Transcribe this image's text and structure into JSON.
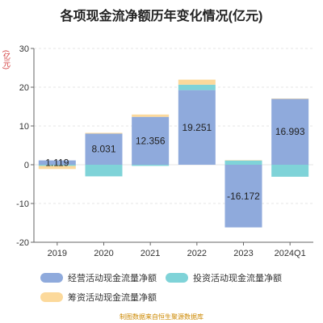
{
  "chart_data": {
    "type": "bar",
    "stacked": true,
    "title": "各项现金流净额历年变化情况(亿元)",
    "unit_label": "(亿元)",
    "categories": [
      "2019",
      "2020",
      "2021",
      "2022",
      "2023",
      "2024Q1"
    ],
    "ylim": [
      -20,
      30
    ],
    "yticks": [
      -20,
      -10,
      0,
      10,
      20,
      30
    ],
    "grid": true,
    "legend_position": "bottom",
    "series": [
      {
        "name": "经营活动现金流量净额",
        "color": "#8faadc",
        "values": [
          1.119,
          8.031,
          12.356,
          19.251,
          -16.172,
          16.993
        ],
        "labels": [
          "1.119",
          "8.031",
          "12.356",
          "19.251",
          "-16.172",
          "16.993"
        ]
      },
      {
        "name": "投资活动现金流量净额",
        "color": "#7fd3d8",
        "values": [
          -0.3,
          -3.0,
          -0.3,
          1.4,
          1.1,
          -3.1
        ]
      },
      {
        "name": "筹资活动现金流量净额",
        "color": "#fcd99b",
        "values": [
          -0.8,
          0.2,
          0.6,
          1.3,
          0.1,
          0.1
        ]
      }
    ],
    "footer": "制图数据来自恒生聚源数据库"
  }
}
